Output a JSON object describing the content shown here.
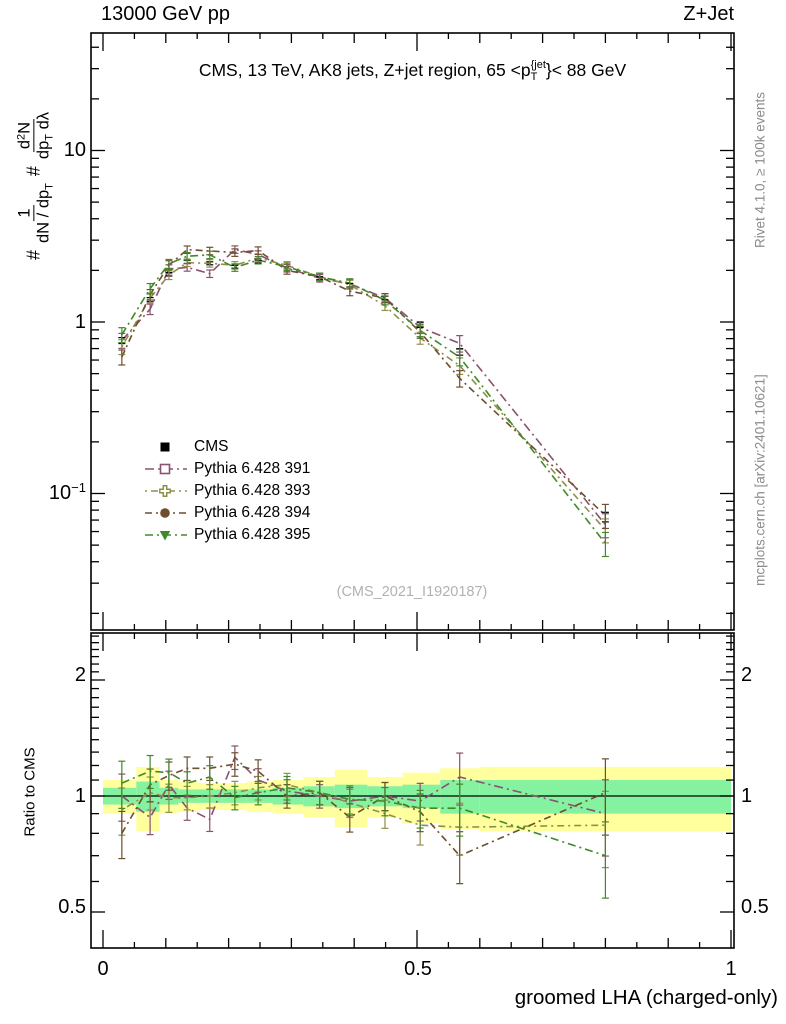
{
  "header": {
    "beam": "13000 GeV pp",
    "process": "Z+Jet"
  },
  "title_parts": {
    "prefix": "CMS, 13 TeV, AK8 jets, Z+jet region, 65 <p",
    "sup": "{jet",
    "sub": "T",
    "suffix": "}< 88 GeV"
  },
  "ylabel_parts": {
    "h1": "#",
    "f1n": "1",
    "f1d1": "dN / dp",
    "f1dsub": "T",
    "h2": "#",
    "f2n1": "d",
    "f2nsup": "2",
    "f2n2": "N",
    "f2d1": "dp",
    "f2dsub": "T",
    "f2d2": " dλ"
  },
  "side_notes": {
    "right_top": "Rivet 4.1.0, ≥ 100k events",
    "right_bottom": "mcplots.cern.ch [arXiv:2401.10621]"
  },
  "watermark": "(CMS_2021_I1920187)",
  "axes": {
    "main_y": [
      {
        "base": "10",
        "sup": ""
      },
      {
        "base": "1",
        "sup": ""
      },
      {
        "base": "10",
        "sup": "−1"
      }
    ],
    "ratio_y": [
      "2",
      "1",
      "0.5"
    ],
    "x": [
      "0",
      "0.5",
      "1"
    ]
  },
  "chart_data": {
    "type": "line",
    "title": "CMS, 13 TeV, AK8 jets, Z+jet region, 65 < pT{jet} < 88 GeV",
    "xlabel": "groomed LHA (charged-only)",
    "ylabel": "# 1/(dN/dpT) # d^2N/(dpT dλ)",
    "ratio_ylabel": "Ratio to CMS",
    "x_range": [
      0,
      1
    ],
    "main_y_log_range": [
      0.016,
      48
    ],
    "ratio_log_range": [
      0.39,
      2.65
    ],
    "legend_position": "inside-left-middle",
    "grid": false,
    "x": [
      0.03,
      0.075,
      0.105,
      0.134,
      0.17,
      0.21,
      0.247,
      0.293,
      0.345,
      0.393,
      0.449,
      0.505,
      0.568,
      0.8
    ],
    "bin_edges": [
      0.0,
      0.053,
      0.09,
      0.12,
      0.152,
      0.19,
      0.229,
      0.27,
      0.319,
      0.369,
      0.421,
      0.477,
      0.537,
      0.6,
      1.0
    ],
    "rel_err": [
      0.1,
      0.07,
      0.06,
      0.05,
      0.05,
      0.05,
      0.05,
      0.05,
      0.05,
      0.06,
      0.06,
      0.08,
      0.11,
      0.16
    ],
    "series": [
      {
        "name": "CMS",
        "marker": "square",
        "color": "#000000",
        "reference": true,
        "values": [
          0.78,
          1.35,
          1.9,
          2.24,
          2.2,
          2.1,
          2.25,
          2.0,
          1.8,
          1.72,
          1.38,
          0.96,
          0.67,
          0.073
        ]
      },
      {
        "name": "Pythia 6.428 391",
        "marker": "open-square",
        "color": "#8a5170",
        "dash": [
          9,
          4,
          2,
          4
        ],
        "ratio": [
          1.0,
          0.88,
          1.07,
          0.93,
          0.87,
          1.26,
          1.1,
          1.03,
          1.0,
          0.97,
          1.0,
          0.97,
          1.12,
          0.9
        ]
      },
      {
        "name": "Pythia 6.428 393",
        "marker": "open-cross",
        "color": "#8f8f4b",
        "dash": [
          2,
          4,
          7,
          4
        ],
        "ratio": [
          0.92,
          1.02,
          0.99,
          0.99,
          1.0,
          1.02,
          1.05,
          1.07,
          1.02,
          0.96,
          0.9,
          0.84,
          0.83,
          0.84
        ]
      },
      {
        "name": "Pythia 6.428 394",
        "marker": "circle",
        "color": "#6d4f2e",
        "dash": [
          7,
          4,
          2,
          4
        ],
        "ratio": [
          0.8,
          1.07,
          1.13,
          1.18,
          1.18,
          1.21,
          1.16,
          1.0,
          1.02,
          0.88,
          1.0,
          0.91,
          0.7,
          1.02
        ]
      },
      {
        "name": "Pythia 6.428 395",
        "marker": "triangle-down",
        "color": "#3f8a28",
        "dash": [
          8,
          4,
          2,
          4
        ],
        "ratio": [
          1.08,
          1.16,
          1.15,
          1.08,
          1.12,
          0.99,
          1.02,
          1.05,
          1.02,
          0.98,
          0.97,
          0.93,
          0.93,
          0.7
        ]
      }
    ],
    "bands": {
      "green_color": "#85f2a0",
      "yellow_color": "#ffff9e",
      "green_lo": [
        0.95,
        0.91,
        0.95,
        0.96,
        0.96,
        0.96,
        0.96,
        0.95,
        0.94,
        0.93,
        0.94,
        0.93,
        0.9,
        0.9
      ],
      "green_hi": [
        1.05,
        1.09,
        1.05,
        1.04,
        1.04,
        1.04,
        1.04,
        1.05,
        1.06,
        1.07,
        1.06,
        1.07,
        1.1,
        1.1
      ],
      "yellow_lo": [
        0.9,
        0.81,
        0.9,
        0.91,
        0.92,
        0.92,
        0.91,
        0.9,
        0.88,
        0.83,
        0.88,
        0.85,
        0.82,
        0.81
      ],
      "yellow_hi": [
        1.1,
        1.19,
        1.1,
        1.09,
        1.08,
        1.08,
        1.09,
        1.1,
        1.12,
        1.17,
        1.12,
        1.15,
        1.18,
        1.19
      ]
    }
  }
}
